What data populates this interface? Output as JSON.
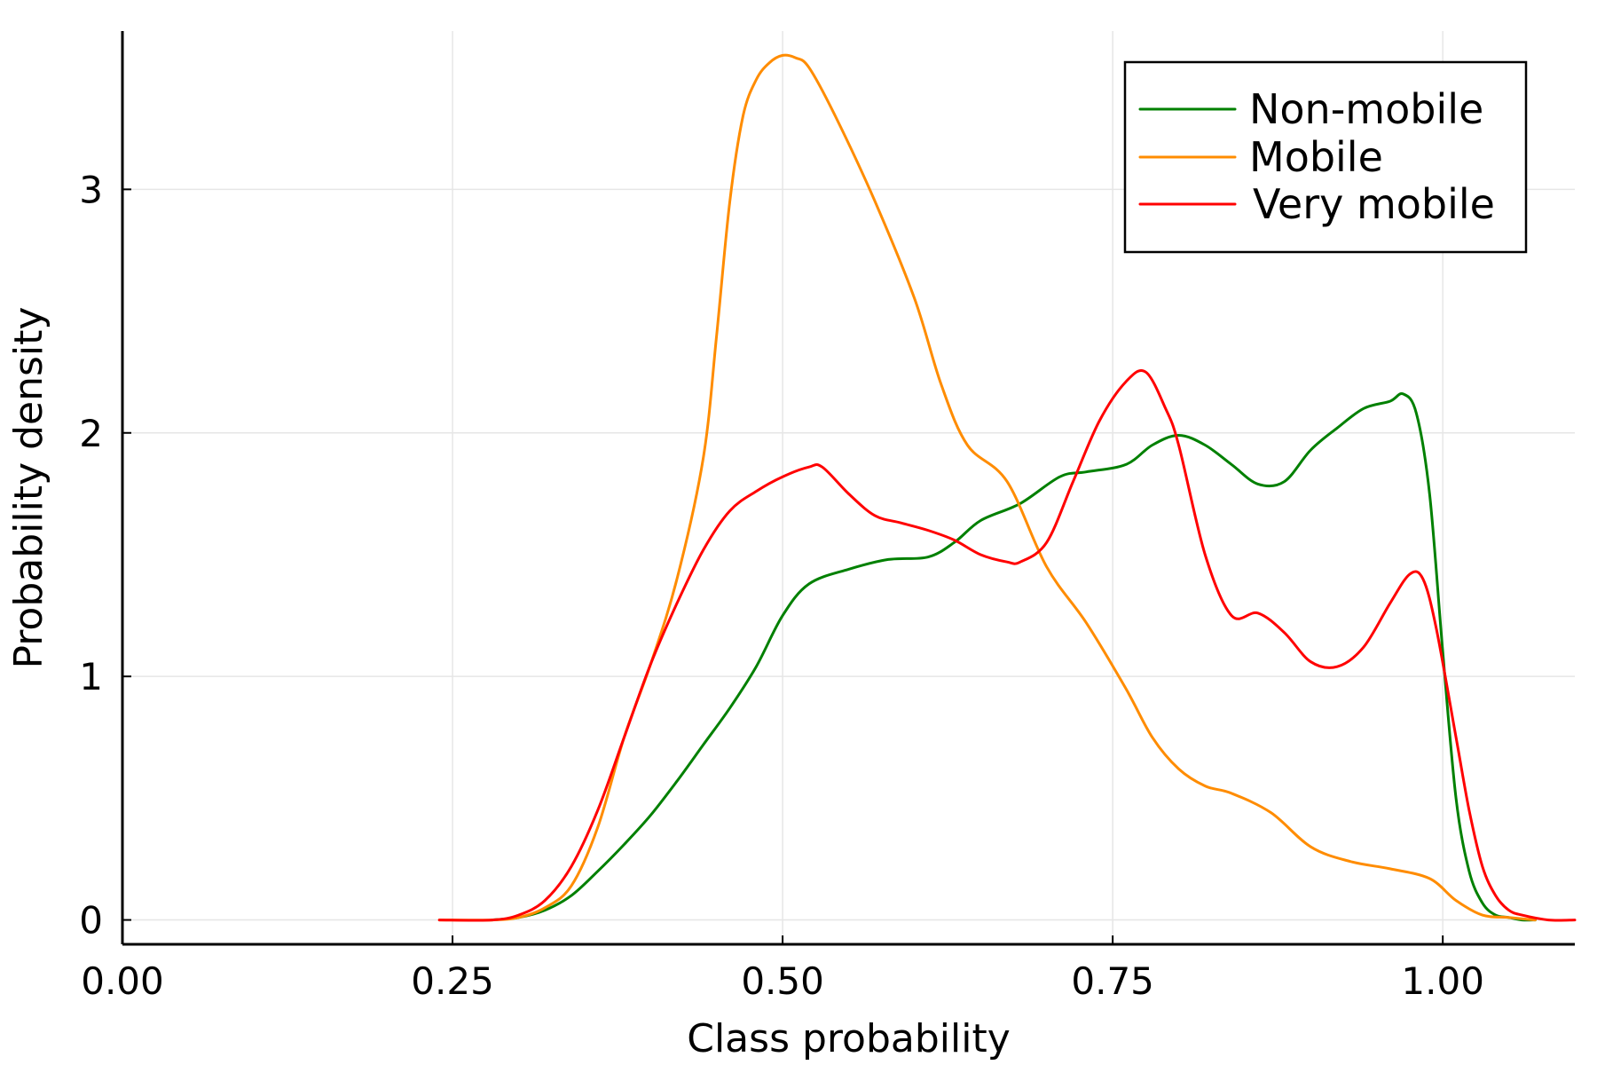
{
  "chart_data": {
    "type": "line",
    "xlabel": "Class probability",
    "ylabel": "Probability density",
    "xlim": [
      0.0,
      1.1
    ],
    "ylim": [
      -0.1,
      3.65
    ],
    "x_ticks": [
      0.0,
      0.25,
      0.5,
      0.75,
      1.0
    ],
    "x_tick_labels": [
      "0.00",
      "0.25",
      "0.50",
      "0.75",
      "1.00"
    ],
    "y_ticks": [
      0,
      1,
      2,
      3
    ],
    "y_tick_labels": [
      "0",
      "1",
      "2",
      "3"
    ],
    "grid": true,
    "legend_position": "top-right",
    "series": [
      {
        "name": "Non-mobile",
        "color": "#008000",
        "x": [
          0.28,
          0.3,
          0.32,
          0.34,
          0.36,
          0.38,
          0.4,
          0.42,
          0.44,
          0.46,
          0.48,
          0.5,
          0.52,
          0.55,
          0.58,
          0.61,
          0.63,
          0.65,
          0.68,
          0.71,
          0.73,
          0.76,
          0.78,
          0.8,
          0.82,
          0.84,
          0.86,
          0.88,
          0.9,
          0.92,
          0.94,
          0.96,
          0.97,
          0.98,
          0.99,
          1.0,
          1.01,
          1.02,
          1.03,
          1.04,
          1.05,
          1.06,
          1.07
        ],
        "y": [
          0.0,
          0.01,
          0.04,
          0.1,
          0.2,
          0.31,
          0.43,
          0.57,
          0.72,
          0.87,
          1.04,
          1.25,
          1.38,
          1.44,
          1.48,
          1.49,
          1.55,
          1.64,
          1.71,
          1.82,
          1.84,
          1.87,
          1.95,
          1.99,
          1.95,
          1.87,
          1.79,
          1.8,
          1.93,
          2.02,
          2.1,
          2.13,
          2.16,
          2.08,
          1.75,
          1.1,
          0.5,
          0.2,
          0.07,
          0.02,
          0.01,
          0.0,
          0.0
        ]
      },
      {
        "name": "Mobile",
        "color": "#ff8c00",
        "x": [
          0.24,
          0.28,
          0.3,
          0.32,
          0.34,
          0.36,
          0.38,
          0.4,
          0.42,
          0.44,
          0.45,
          0.46,
          0.47,
          0.48,
          0.49,
          0.5,
          0.51,
          0.52,
          0.54,
          0.57,
          0.6,
          0.62,
          0.64,
          0.67,
          0.7,
          0.73,
          0.76,
          0.78,
          0.8,
          0.82,
          0.84,
          0.87,
          0.9,
          0.93,
          0.96,
          0.99,
          1.01,
          1.03,
          1.05,
          1.07
        ],
        "y": [
          0.0,
          0.0,
          0.01,
          0.05,
          0.14,
          0.38,
          0.75,
          1.05,
          1.4,
          1.9,
          2.4,
          2.95,
          3.3,
          3.45,
          3.52,
          3.55,
          3.54,
          3.5,
          3.3,
          2.95,
          2.55,
          2.2,
          1.95,
          1.8,
          1.45,
          1.22,
          0.95,
          0.75,
          0.62,
          0.55,
          0.52,
          0.44,
          0.3,
          0.24,
          0.21,
          0.17,
          0.08,
          0.02,
          0.01,
          0.0
        ]
      },
      {
        "name": "Very mobile",
        "color": "#ff0000",
        "x": [
          0.24,
          0.28,
          0.3,
          0.32,
          0.34,
          0.36,
          0.38,
          0.4,
          0.42,
          0.44,
          0.46,
          0.48,
          0.5,
          0.52,
          0.53,
          0.55,
          0.57,
          0.59,
          0.61,
          0.63,
          0.65,
          0.67,
          0.68,
          0.7,
          0.72,
          0.74,
          0.76,
          0.775,
          0.79,
          0.8,
          0.82,
          0.84,
          0.86,
          0.88,
          0.9,
          0.92,
          0.94,
          0.96,
          0.975,
          0.985,
          0.995,
          1.01,
          1.02,
          1.03,
          1.04,
          1.05,
          1.06,
          1.08,
          1.1
        ],
        "y": [
          0.0,
          0.0,
          0.02,
          0.08,
          0.22,
          0.45,
          0.75,
          1.05,
          1.3,
          1.52,
          1.68,
          1.76,
          1.82,
          1.86,
          1.86,
          1.75,
          1.66,
          1.63,
          1.6,
          1.56,
          1.5,
          1.47,
          1.47,
          1.55,
          1.8,
          2.05,
          2.21,
          2.25,
          2.1,
          1.95,
          1.5,
          1.25,
          1.26,
          1.18,
          1.06,
          1.04,
          1.12,
          1.3,
          1.42,
          1.4,
          1.2,
          0.75,
          0.45,
          0.22,
          0.1,
          0.04,
          0.02,
          0.0,
          0.0
        ]
      }
    ]
  }
}
